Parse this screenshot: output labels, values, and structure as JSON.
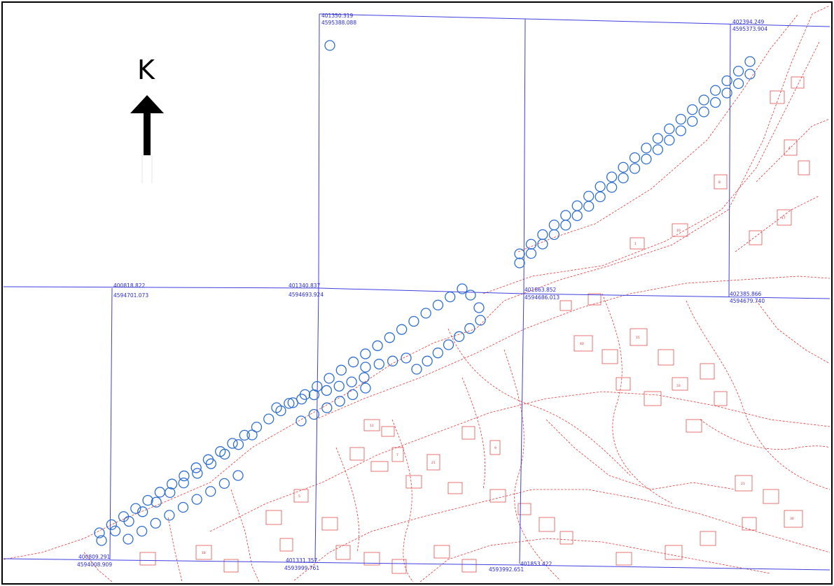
{
  "north_arrow": {
    "letter": "K"
  },
  "grid_labels": {
    "l1": "401350.319",
    "l2": "4595388.088",
    "l3": "402394.249",
    "l4": "4595373.904",
    "l5": "400818.822",
    "l6": "4594701.073",
    "l7": "401340.837",
    "l8": "4594693.924",
    "l9": "401863.852",
    "l10": "4594686.013",
    "l11": "402385.866",
    "l12": "4594679.740",
    "l13": "400809.291",
    "l14": "4594008.909",
    "l15": "401331.357",
    "l16": "4593999.761",
    "l17": "401853.422",
    "l18": "4593992.651"
  },
  "colors": {
    "grid": "#3f3fe0",
    "parcels": "#e23a3a",
    "markers": "#2f6fd0",
    "frame": "#000000"
  }
}
